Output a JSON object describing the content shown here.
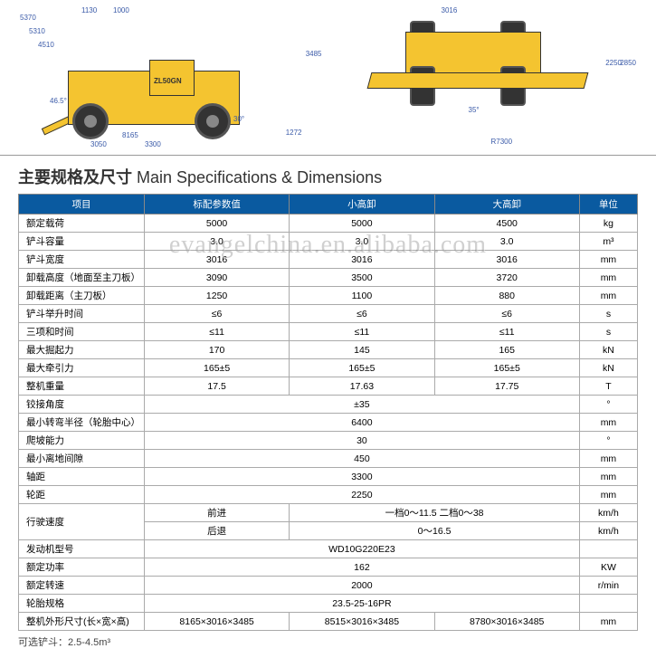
{
  "title": {
    "cn": "主要规格及尺寸",
    "en": "Main Specifications & Dimensions"
  },
  "watermark": "evangelchina.en.alibaba.com",
  "diagram": {
    "model": "ZL50GN",
    "side_dims": [
      "5370",
      "5310",
      "4510",
      "1130",
      "1000",
      "46.5°",
      "3050",
      "3300",
      "8165",
      "30°",
      "1272",
      "3485"
    ],
    "top_dims": [
      "3016",
      "35°",
      "R7300",
      "2250",
      "2850"
    ]
  },
  "header": [
    "项目",
    "标配参数值",
    "小高卸",
    "大高卸",
    "单位"
  ],
  "rows": [
    {
      "label": "额定载荷",
      "v": [
        "5000",
        "5000",
        "4500"
      ],
      "unit": "kg"
    },
    {
      "label": "铲斗容量",
      "v": [
        "3.0",
        "3.0",
        "3.0"
      ],
      "unit": "m³"
    },
    {
      "label": "铲斗宽度",
      "v": [
        "3016",
        "3016",
        "3016"
      ],
      "unit": "mm"
    },
    {
      "label": "卸载高度（地面至主刀板）",
      "v": [
        "3090",
        "3500",
        "3720"
      ],
      "unit": "mm"
    },
    {
      "label": "卸载距离（主刀板）",
      "v": [
        "1250",
        "1100",
        "880"
      ],
      "unit": "mm"
    },
    {
      "label": "铲斗举升时间",
      "v": [
        "≤6",
        "≤6",
        "≤6"
      ],
      "unit": "s"
    },
    {
      "label": "三项和时间",
      "v": [
        "≤11",
        "≤11",
        "≤11"
      ],
      "unit": "s"
    },
    {
      "label": "最大掘起力",
      "v": [
        "170",
        "145",
        "165"
      ],
      "unit": "kN"
    },
    {
      "label": "最大牵引力",
      "v": [
        "165±5",
        "165±5",
        "165±5"
      ],
      "unit": "kN"
    },
    {
      "label": "整机重量",
      "v": [
        "17.5",
        "17.63",
        "17.75"
      ],
      "unit": "T"
    },
    {
      "label": "铰接角度",
      "span": "±35",
      "unit": "°"
    },
    {
      "label": "最小转弯半径（轮胎中心）",
      "span": "6400",
      "unit": "mm"
    },
    {
      "label": "爬坡能力",
      "span": "30",
      "unit": "°"
    },
    {
      "label": "最小离地间隙",
      "span": "450",
      "unit": "mm"
    },
    {
      "label": "轴距",
      "span": "3300",
      "unit": "mm"
    },
    {
      "label": "轮距",
      "span": "2250",
      "unit": "mm"
    }
  ],
  "speed": {
    "label": "行驶速度",
    "fwd": {
      "sub": "前进",
      "val": "一档0～11.5  二档0～38",
      "unit": "km/h"
    },
    "rev": {
      "sub": "后退",
      "val": "0～16.5",
      "unit": "km/h"
    }
  },
  "rows2": [
    {
      "label": "发动机型号",
      "span": "WD10G220E23",
      "unit": ""
    },
    {
      "label": "额定功率",
      "span": "162",
      "unit": "KW"
    },
    {
      "label": "额定转速",
      "span": "2000",
      "unit": "r/min"
    },
    {
      "label": "轮胎规格",
      "span": "23.5-25-16PR",
      "unit": ""
    }
  ],
  "last": {
    "label": "整机外形尺寸(长×宽×高)",
    "v": [
      "8165×3016×3485",
      "8515×3016×3485",
      "8780×3016×3485"
    ],
    "unit": "mm"
  },
  "footnote": "可选铲斗：2.5-4.5m³"
}
